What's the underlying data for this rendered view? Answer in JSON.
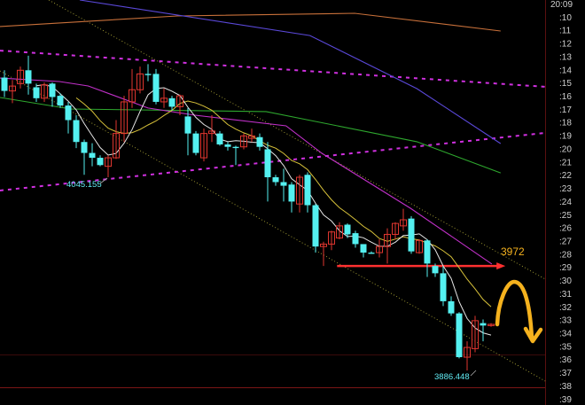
{
  "chart_data": {
    "type": "candlestick",
    "title": "",
    "xlabel": "",
    "ylabel": "",
    "y_axis_labels": [
      "20:09",
      ":10",
      ":11",
      ":12",
      ":13",
      ":14",
      ":15",
      ":16",
      ":17",
      ":18",
      ":19",
      ":20",
      ":21",
      ":22",
      ":23",
      ":24",
      ":25",
      ":26",
      ":27",
      ":28",
      ":29",
      ":30",
      ":31",
      ":32",
      ":33",
      ":34",
      ":35",
      ":36",
      ":37",
      ":38",
      ":39"
    ],
    "colors": {
      "background": "#000000",
      "up": "#e0362f",
      "down": "#54f0f0",
      "ma5": "#e6e6e6",
      "ma10": "#d8c23a",
      "ma_magenta": "#c030c8",
      "ma_green": "#2ea82e",
      "ma_blue": "#5a48d8",
      "ma_orange": "#c8703a",
      "channel": "#c8c040",
      "trend_dashed": "#d030e0",
      "arrow": "#ff3030",
      "annotation": "#f5b21e"
    },
    "candles": [
      [
        4127,
        4133,
        4111,
        4116
      ],
      [
        4116,
        4125,
        4106,
        4120
      ],
      [
        4122,
        4136,
        4118,
        4133
      ],
      [
        4133,
        4145,
        4113,
        4122
      ],
      [
        4119,
        4122,
        4107,
        4110
      ],
      [
        4110,
        4123,
        4107,
        4121
      ],
      [
        4122,
        4123,
        4103,
        4111
      ],
      [
        4112,
        4114,
        4102,
        4104
      ],
      [
        4104,
        4107,
        4081,
        4092
      ],
      [
        4092,
        4096,
        4069,
        4074
      ],
      [
        4074,
        4076,
        4047,
        4065
      ],
      [
        4065,
        4073,
        4054,
        4061
      ],
      [
        4061,
        4063,
        4054,
        4055
      ],
      [
        4054,
        4063,
        4045,
        4061
      ],
      [
        4061,
        4092,
        4060,
        4081
      ],
      [
        4081,
        4112,
        4074,
        4107
      ],
      [
        4107,
        4134,
        4102,
        4117
      ],
      [
        4117,
        4136,
        4114,
        4130
      ],
      [
        4130,
        4138,
        4124,
        4129
      ],
      [
        4130,
        4134,
        4105,
        4107
      ],
      [
        4107,
        4118,
        4102,
        4110
      ],
      [
        4110,
        4112,
        4100,
        4103
      ],
      [
        4103,
        4113,
        4096,
        4112
      ],
      [
        4095,
        4102,
        4063,
        4081
      ],
      [
        4081,
        4083,
        4063,
        4065
      ],
      [
        4061,
        4085,
        4058,
        4081
      ],
      [
        4081,
        4096,
        4074,
        4083
      ],
      [
        4081,
        4083,
        4071,
        4072
      ],
      [
        4072,
        4074,
        4067,
        4070
      ],
      [
        4070,
        4071,
        4055,
        4069
      ],
      [
        4070,
        4081,
        4068,
        4079
      ],
      [
        4077,
        4085,
        4074,
        4079
      ],
      [
        4078,
        4081,
        4067,
        4070
      ],
      [
        4068,
        4074,
        4025,
        4045
      ],
      [
        4045,
        4047,
        4038,
        4041
      ],
      [
        4041,
        4052,
        4025,
        4038
      ],
      [
        4039,
        4041,
        4016,
        4025
      ],
      [
        4023,
        4047,
        4016,
        4045
      ],
      [
        4047,
        4049,
        4016,
        4022
      ],
      [
        4022,
        4023,
        3983,
        3988
      ],
      [
        3988,
        3992,
        3972,
        3990
      ],
      [
        3990,
        4001,
        3985,
        4000
      ],
      [
        3995,
        4008,
        3994,
        4005
      ],
      [
        4006,
        4007,
        3995,
        3998
      ],
      [
        3999,
        4001,
        3987,
        3990
      ],
      [
        3990,
        3990,
        3979,
        3983
      ],
      [
        3983,
        3984,
        3982,
        3982
      ],
      [
        3983,
        3994,
        3979,
        3988
      ],
      [
        3988,
        4003,
        3974,
        3998
      ],
      [
        3998,
        4008,
        3994,
        4007
      ],
      [
        4005,
        4019,
        4001,
        4010
      ],
      [
        4011,
        4013,
        3982,
        3984
      ],
      [
        3983,
        3994,
        3982,
        3993
      ],
      [
        3993,
        3994,
        3963,
        3974
      ],
      [
        3972,
        3974,
        3963,
        3966
      ],
      [
        3966,
        3972,
        3939,
        3943
      ],
      [
        3943,
        3947,
        3931,
        3933
      ],
      [
        3933,
        3934,
        3896,
        3897
      ],
      [
        3897,
        3910,
        3886,
        3905
      ],
      [
        3904,
        3931,
        3901,
        3927
      ],
      [
        3925,
        3928,
        3910,
        3923
      ],
      [
        3923,
        3925,
        3922,
        3924
      ]
    ],
    "moving_averages_computed": [
      5,
      10
    ],
    "other_lines": {
      "magenta": [
        [
          -0.56,
          4126.6
        ],
        [
          6.9,
          4123.7
        ],
        [
          10.5,
          4120.1
        ],
        [
          18,
          4101.9
        ],
        [
          23.9,
          4096
        ],
        [
          35.3,
          4087.3
        ],
        [
          39.8,
          4064.7
        ],
        [
          50.9,
          4019.5
        ],
        [
          61.1,
          3973.6
        ]
      ],
      "green": [
        [
          -0.56,
          4110.6
        ],
        [
          8.33,
          4101.1
        ],
        [
          32.8,
          4099
        ],
        [
          51.7,
          4074.2
        ],
        [
          62.2,
          4048.6
        ]
      ],
      "blue": [
        [
          9.44,
          4190.8
        ],
        [
          38.3,
          4161.6
        ],
        [
          51.7,
          4117.9
        ],
        [
          62.2,
          4072.7
        ]
      ],
      "orange": [
        [
          -0.56,
          4169
        ],
        [
          21.7,
          4177.7
        ],
        [
          43.9,
          4179.9
        ],
        [
          62.2,
          4165.3
        ]
      ]
    },
    "trend_lines": {
      "channel_upper": [
        [
          5.56,
          4190.8
        ],
        [
          67.8,
          3961.2
        ]
      ],
      "channel_lower": [
        [
          -0.56,
          4132.5
        ],
        [
          67.8,
          3877.3
        ]
      ],
      "dashed_upper": [
        [
          -0.56,
          4149.2
        ],
        [
          67.8,
          4119.4
        ]
      ],
      "dashed_lower": [
        [
          -0.56,
          4034.1
        ],
        [
          67.8,
          4081.5
        ]
      ]
    },
    "annotations": {
      "low_label_1": "4045.155",
      "low_label_2": "3886.448",
      "arrow_level": 3972,
      "arrow_label": "3972",
      "arrow_from_index": 41.7,
      "arrow_to_index": 62.8
    }
  }
}
